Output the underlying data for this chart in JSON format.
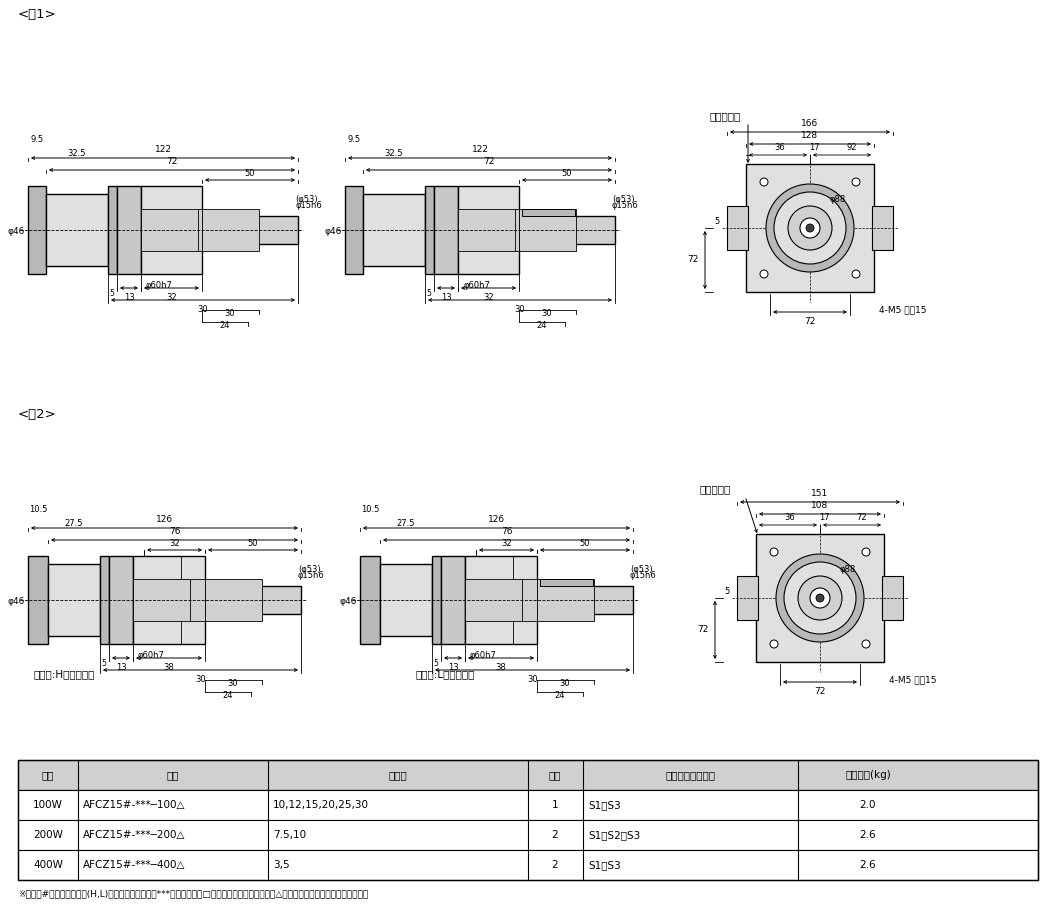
{
  "bg": "#ffffff",
  "lc": "#000000",
  "gray1": "#d0d0d0",
  "gray2": "#e0e0e0",
  "gray3": "#b8b8b8",
  "gray4": "#c8c8c8",
  "table_hdr": "#d0d0d0",
  "fig1_title": "<図1>",
  "fig2_title": "<図2>",
  "phi46": "φ46",
  "phi15h6": "φ15h6",
  "phi53": "(φ53)",
  "phi60h7": "φ60h7",
  "phi88": "φ88",
  "flange_label": "フランジ面",
  "axis_h": "軸区分:H（キー無）",
  "axis_l": "軸区分:L（キー有）",
  "m5": "4-M5 深さ15",
  "tbl_headers": [
    "容量",
    "型式",
    "減速比",
    "図番",
    "フランジ形状種別",
    "概略質量(kg)"
  ],
  "tbl_rows": [
    [
      "100W",
      "AFCZ15#-***─100△",
      "10,12,15,20,25,30",
      "1",
      "S1・S3",
      "2.0"
    ],
    [
      "200W",
      "AFCZ15#-***─200△",
      "7.5,10",
      "2",
      "S1・S2・S3",
      "2.6"
    ],
    [
      "400W",
      "AFCZ15#-***─400△",
      "3,5",
      "2",
      "S1・S3",
      "2.6"
    ]
  ],
  "footnote": "※型式の#には軸区分記号(H,L)が入ります。また、***には減速比、□にはバックラッシュ精度、△にはフランジ形状種別が入ります。"
}
